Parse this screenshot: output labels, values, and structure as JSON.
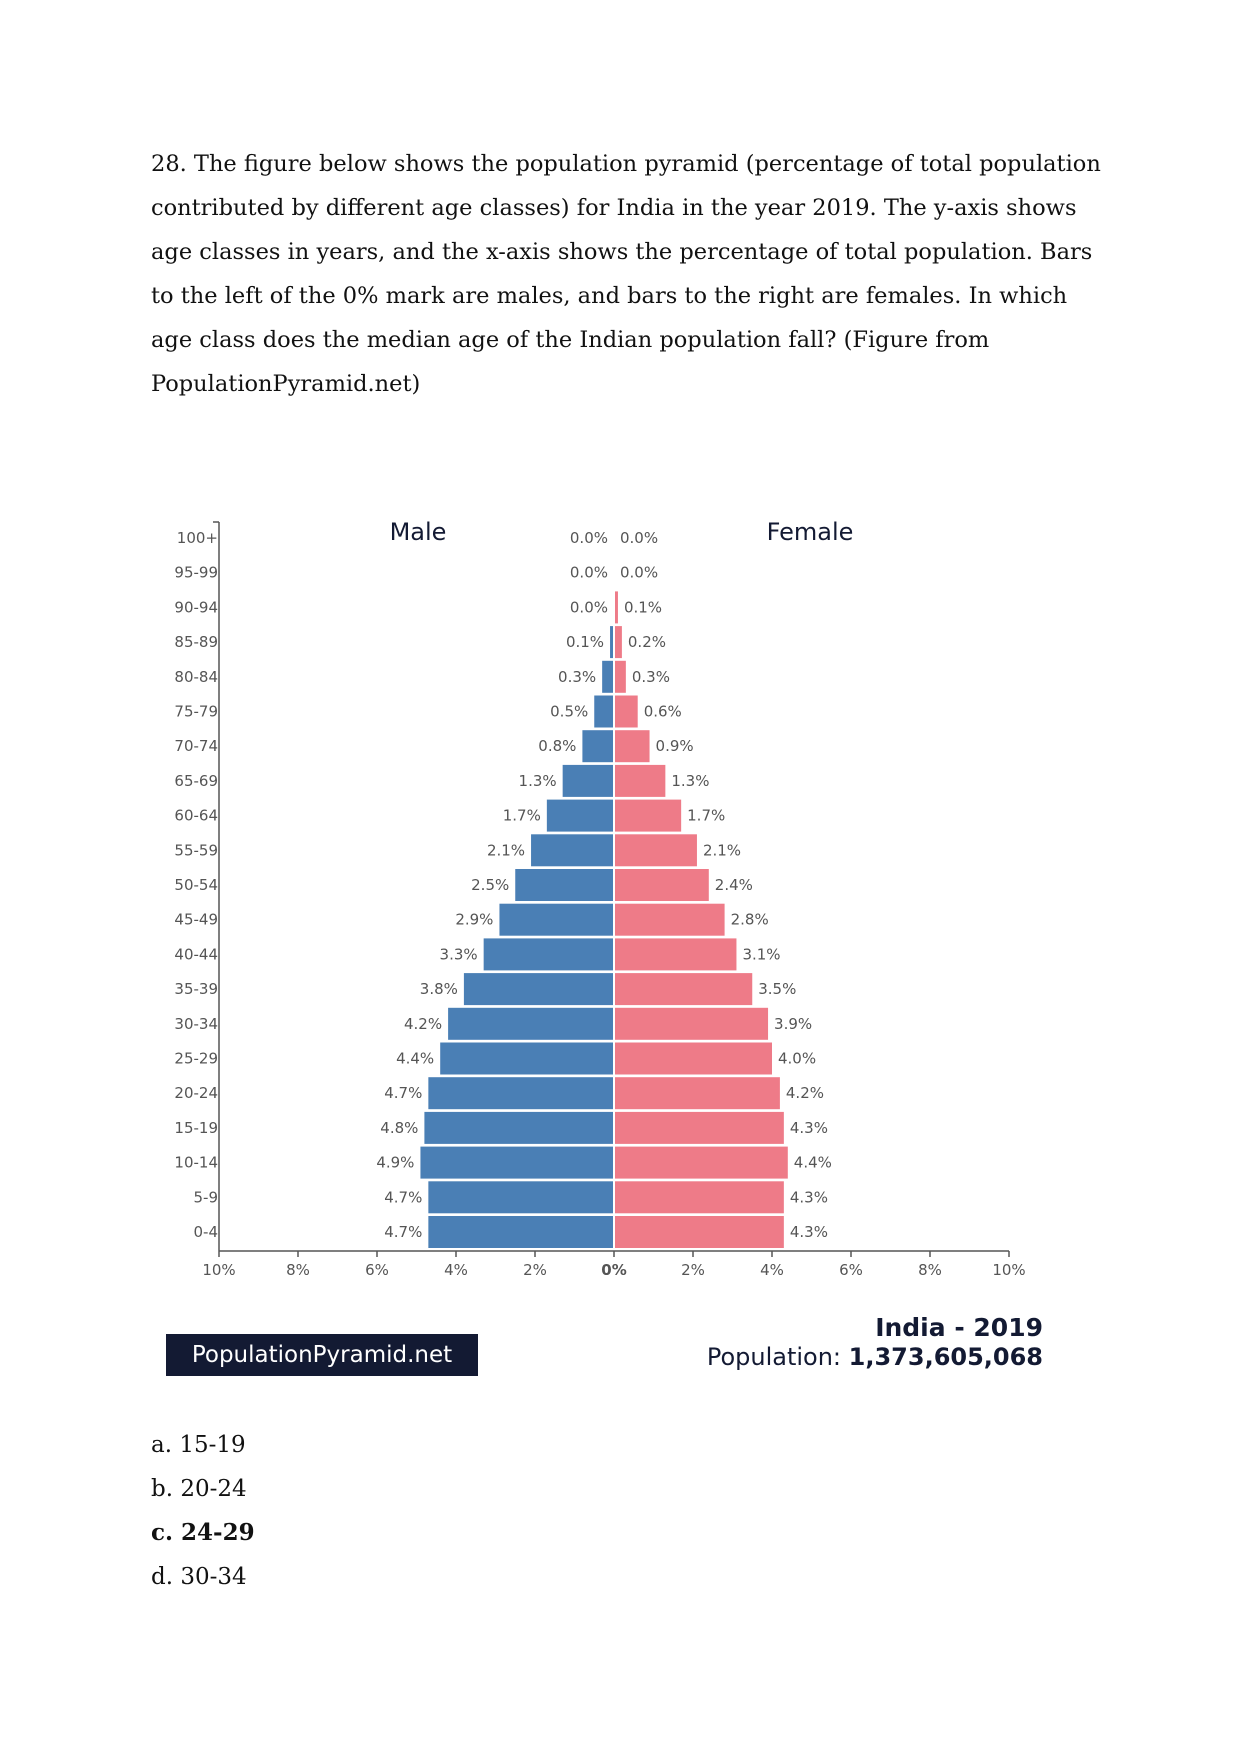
{
  "question": {
    "text": "28. The figure below shows the population pyramid (percentage of total population contributed by different age classes) for India in the year 2019. The y-axis shows age classes in years, and the x-axis shows the percentage of total population. Bars to the left of the 0% mark are males, and bars to the right are females. In which age class does the median age of the Indian population fall? (Figure from PopulationPyramid.net)"
  },
  "figure": {
    "brand": "PopulationPyramid.net",
    "country_year": "India - 2019",
    "population_label": "Population:",
    "population_value": "1,373,605,068"
  },
  "chart_data": {
    "type": "bar",
    "orientation": "horizontal-pyramid",
    "categories": [
      "100+",
      "95-99",
      "90-94",
      "85-89",
      "80-84",
      "75-79",
      "70-74",
      "65-69",
      "60-64",
      "55-59",
      "50-54",
      "45-49",
      "40-44",
      "35-39",
      "30-34",
      "25-29",
      "20-24",
      "15-19",
      "10-14",
      "5-9",
      "0-4"
    ],
    "series": [
      {
        "name": "Male",
        "color": "#4a7fb5",
        "values": [
          0.0,
          0.0,
          0.0,
          0.1,
          0.3,
          0.5,
          0.8,
          1.3,
          1.7,
          2.1,
          2.5,
          2.9,
          3.3,
          3.8,
          4.2,
          4.4,
          4.7,
          4.8,
          4.9,
          4.7,
          4.7
        ],
        "labels": [
          "0.0%",
          "0.0%",
          "0.0%",
          "0.1%",
          "0.3%",
          "0.5%",
          "0.8%",
          "1.3%",
          "1.7%",
          "2.1%",
          "2.5%",
          "2.9%",
          "3.3%",
          "3.8%",
          "4.2%",
          "4.4%",
          "4.7%",
          "4.8%",
          "4.9%",
          "4.7%",
          "4.7%"
        ]
      },
      {
        "name": "Female",
        "color": "#ee7b88",
        "values": [
          0.0,
          0.0,
          0.1,
          0.2,
          0.3,
          0.6,
          0.9,
          1.3,
          1.7,
          2.1,
          2.4,
          2.8,
          3.1,
          3.5,
          3.9,
          4.0,
          4.2,
          4.3,
          4.4,
          4.3,
          4.3
        ],
        "labels": [
          "0.0%",
          "0.0%",
          "0.1%",
          "0.2%",
          "0.3%",
          "0.6%",
          "0.9%",
          "1.3%",
          "1.7%",
          "2.1%",
          "2.4%",
          "2.8%",
          "3.1%",
          "3.5%",
          "3.9%",
          "4.0%",
          "4.2%",
          "4.3%",
          "4.4%",
          "4.3%",
          "4.3%"
        ]
      }
    ],
    "xlim": [
      -10,
      10
    ],
    "x_ticks": [
      -10,
      -8,
      -6,
      -4,
      -2,
      0,
      2,
      4,
      6,
      8,
      10
    ],
    "x_tick_labels": [
      "10%",
      "8%",
      "6%",
      "4%",
      "2%",
      "0%",
      "2%",
      "4%",
      "6%",
      "8%",
      "10%"
    ],
    "grid": false
  },
  "answers": [
    {
      "label": "a. 15-19",
      "correct": false
    },
    {
      "label": "b. 20-24",
      "correct": false
    },
    {
      "label": "c. 24-29",
      "correct": true
    },
    {
      "label": "d. 30-34",
      "correct": false
    }
  ]
}
